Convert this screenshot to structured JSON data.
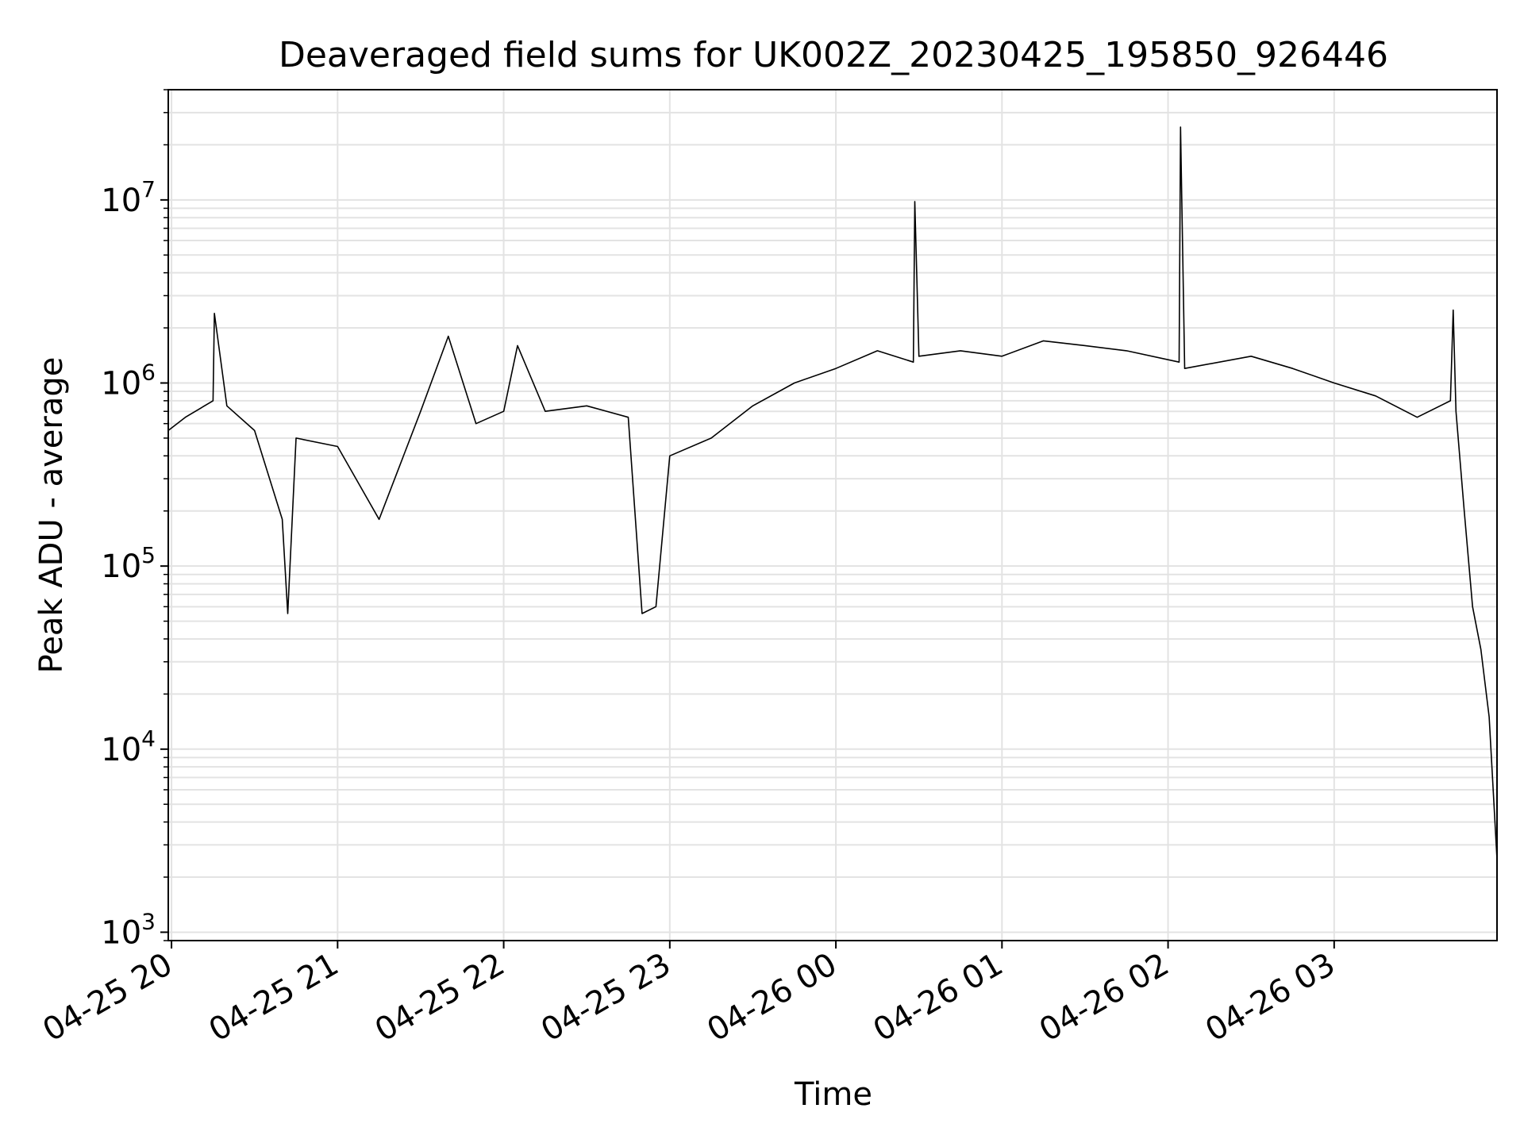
{
  "chart_data": {
    "type": "line",
    "title": "Deaveraged field sums for UK002Z_20230425_195850_926446",
    "xlabel": "Time",
    "ylabel": "Peak ADU - average",
    "yscale": "log",
    "ylim": [
      900,
      40000000
    ],
    "xlim": [
      "2023-04-25 19:58:50",
      "2023-04-26 03:58:50"
    ],
    "grid": true,
    "x_ticks": [
      {
        "label": "04-25 20",
        "time": "2023-04-25 20:00"
      },
      {
        "label": "04-25 21",
        "time": "2023-04-25 21:00"
      },
      {
        "label": "04-25 22",
        "time": "2023-04-25 22:00"
      },
      {
        "label": "04-25 23",
        "time": "2023-04-25 23:00"
      },
      {
        "label": "04-26 00",
        "time": "2023-04-26 00:00"
      },
      {
        "label": "04-26 01",
        "time": "2023-04-26 01:00"
      },
      {
        "label": "04-26 02",
        "time": "2023-04-26 02:00"
      },
      {
        "label": "04-26 03",
        "time": "2023-04-26 03:00"
      }
    ],
    "y_ticks": [
      {
        "value": 1000,
        "base": "10",
        "exp": "3"
      },
      {
        "value": 10000,
        "base": "10",
        "exp": "4"
      },
      {
        "value": 100000,
        "base": "10",
        "exp": "5"
      },
      {
        "value": 1000000,
        "base": "10",
        "exp": "6"
      },
      {
        "value": 10000000,
        "base": "10",
        "exp": "7"
      }
    ],
    "line_color": "#000000",
    "series": [
      {
        "points": [
          [
            "2023-04-25 19:58:50",
            550000
          ],
          [
            "2023-04-25 20:05",
            650000
          ],
          [
            "2023-04-25 20:15",
            800000
          ],
          [
            "2023-04-25 20:15:30",
            2400000
          ],
          [
            "2023-04-25 20:20",
            750000
          ],
          [
            "2023-04-25 20:30",
            550000
          ],
          [
            "2023-04-25 20:40",
            180000
          ],
          [
            "2023-04-25 20:42",
            55000
          ],
          [
            "2023-04-25 20:45",
            500000
          ],
          [
            "2023-04-25 21:00",
            450000
          ],
          [
            "2023-04-25 21:15",
            180000
          ],
          [
            "2023-04-25 21:30",
            700000
          ],
          [
            "2023-04-25 21:40",
            1800000
          ],
          [
            "2023-04-25 21:50",
            600000
          ],
          [
            "2023-04-25 22:00",
            700000
          ],
          [
            "2023-04-25 22:05",
            1600000
          ],
          [
            "2023-04-25 22:15",
            700000
          ],
          [
            "2023-04-25 22:30",
            750000
          ],
          [
            "2023-04-25 22:45",
            650000
          ],
          [
            "2023-04-25 22:50",
            55000
          ],
          [
            "2023-04-25 22:55",
            60000
          ],
          [
            "2023-04-25 23:00",
            400000
          ],
          [
            "2023-04-25 23:15",
            500000
          ],
          [
            "2023-04-25 23:30",
            750000
          ],
          [
            "2023-04-25 23:45",
            1000000
          ],
          [
            "2023-04-26 00:00",
            1200000
          ],
          [
            "2023-04-26 00:15",
            1500000
          ],
          [
            "2023-04-26 00:28",
            1300000
          ],
          [
            "2023-04-26 00:28:30",
            9800000
          ],
          [
            "2023-04-26 00:30",
            1400000
          ],
          [
            "2023-04-26 00:45",
            1500000
          ],
          [
            "2023-04-26 01:00",
            1400000
          ],
          [
            "2023-04-26 01:15",
            1700000
          ],
          [
            "2023-04-26 01:30",
            1600000
          ],
          [
            "2023-04-26 01:45",
            1500000
          ],
          [
            "2023-04-26 02:04",
            1300000
          ],
          [
            "2023-04-26 02:04:30",
            25000000
          ],
          [
            "2023-04-26 02:06",
            1200000
          ],
          [
            "2023-04-26 02:30",
            1400000
          ],
          [
            "2023-04-26 02:45",
            1200000
          ],
          [
            "2023-04-26 03:00",
            1000000
          ],
          [
            "2023-04-26 03:15",
            850000
          ],
          [
            "2023-04-26 03:30",
            650000
          ],
          [
            "2023-04-26 03:42",
            800000
          ],
          [
            "2023-04-26 03:43",
            2500000
          ],
          [
            "2023-04-26 03:44",
            700000
          ],
          [
            "2023-04-26 03:47",
            200000
          ],
          [
            "2023-04-26 03:50",
            60000
          ],
          [
            "2023-04-26 03:53",
            35000
          ],
          [
            "2023-04-26 03:56",
            15000
          ],
          [
            "2023-04-26 03:58:50",
            2500
          ]
        ]
      }
    ]
  }
}
